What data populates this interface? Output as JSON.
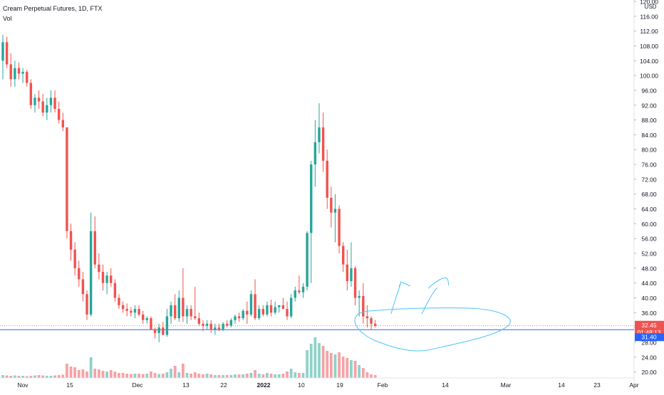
{
  "legend": {
    "title": "Cream Perpetual Futures, 1D, FTX",
    "volume_label": "Vol"
  },
  "chart_data": {
    "type": "candlestick",
    "currency_label": "USD",
    "price_axis": {
      "min": 18,
      "max": 120,
      "tick_labels": [
        "20.00",
        "24.00",
        "28.00",
        "32.00",
        "36.00",
        "40.00",
        "44.00",
        "48.00",
        "52.00",
        "56.00",
        "60.00",
        "64.00",
        "68.00",
        "72.00",
        "76.00",
        "80.00",
        "84.00",
        "88.00",
        "92.00",
        "96.00",
        "100.00",
        "104.00",
        "108.00",
        "112.00",
        "116.00",
        "120.00"
      ]
    },
    "time_axis": {
      "tick_labels": [
        "Nov",
        "15",
        "Dec",
        "13",
        "22",
        "2022",
        "10",
        "19",
        "Feb",
        "14",
        "Mar",
        "14",
        "23",
        "Apr"
      ],
      "bold_labels": [
        "2022"
      ]
    },
    "price_badges": {
      "last_price": "32.45",
      "countdown": "01:48:13",
      "line_price": "31.40"
    },
    "horizontal_line": 31.4,
    "colors": {
      "up": "#26a69a",
      "down": "#ef5350",
      "vol_up": "#8fd1c9",
      "vol_down": "#f5a3a6",
      "line": "#2962ff",
      "drawing": "#4fc3f7"
    },
    "candles": [
      [
        104.0,
        111.0,
        99.0,
        109.0
      ],
      [
        109.0,
        110.5,
        102.0,
        103.0
      ],
      [
        103.0,
        106.0,
        97.0,
        99.0
      ],
      [
        99.0,
        104.0,
        97.0,
        102.0
      ],
      [
        102.0,
        103.5,
        99.0,
        100.5
      ],
      [
        100.5,
        102.0,
        98.0,
        101.0
      ],
      [
        101.0,
        101.5,
        97.0,
        98.0
      ],
      [
        98.0,
        99.0,
        91.0,
        92.0
      ],
      [
        92.0,
        95.0,
        90.0,
        94.0
      ],
      [
        94.0,
        96.0,
        91.0,
        93.0
      ],
      [
        93.0,
        95.0,
        89.0,
        90.0
      ],
      [
        90.0,
        94.0,
        88.0,
        92.0
      ],
      [
        92.0,
        96.0,
        90.0,
        94.0
      ],
      [
        94.0,
        96.0,
        90.0,
        91.0
      ],
      [
        91.0,
        93.0,
        87.0,
        88.0
      ],
      [
        88.0,
        90.0,
        85.0,
        86.0
      ],
      [
        86.0,
        86.0,
        56.0,
        58.0
      ],
      [
        58.0,
        60.0,
        50.0,
        53.0
      ],
      [
        53.0,
        55.0,
        46.0,
        48.0
      ],
      [
        48.0,
        50.0,
        43.0,
        45.0
      ],
      [
        45.0,
        47.0,
        39.0,
        41.0
      ],
      [
        41.0,
        42.0,
        34.0,
        35.5
      ],
      [
        35.5,
        63.0,
        35.0,
        58.0
      ],
      [
        58.0,
        62.0,
        48.0,
        49.0
      ],
      [
        49.0,
        52.0,
        45.0,
        47.0
      ],
      [
        47.0,
        49.0,
        42.0,
        44.0
      ],
      [
        44.0,
        47.0,
        41.0,
        46.0
      ],
      [
        46.0,
        48.0,
        43.0,
        44.0
      ],
      [
        44.0,
        45.0,
        39.0,
        40.0
      ],
      [
        40.0,
        41.0,
        37.0,
        38.0
      ],
      [
        38.0,
        39.0,
        36.0,
        37.0
      ],
      [
        37.0,
        38.5,
        35.0,
        36.5
      ],
      [
        36.5,
        37.5,
        35.0,
        36.0
      ],
      [
        36.0,
        38.0,
        34.5,
        37.0
      ],
      [
        37.0,
        38.0,
        35.0,
        35.5
      ],
      [
        35.5,
        36.5,
        33.0,
        34.0
      ],
      [
        34.0,
        35.0,
        33.0,
        34.5
      ],
      [
        34.5,
        35.0,
        32.0,
        31.5
      ],
      [
        31.5,
        32.0,
        29.0,
        30.5
      ],
      [
        30.5,
        33.0,
        28.0,
        32.0
      ],
      [
        32.0,
        33.5,
        30.0,
        30.0
      ],
      [
        30.0,
        37.0,
        29.5,
        35.0
      ],
      [
        35.0,
        39.0,
        33.0,
        38.0
      ],
      [
        38.0,
        41.0,
        34.0,
        34.5
      ],
      [
        34.5,
        42.0,
        33.5,
        40.0
      ],
      [
        40.0,
        48.0,
        33.5,
        35.0
      ],
      [
        35.0,
        38.0,
        33.0,
        37.0
      ],
      [
        37.0,
        38.0,
        34.0,
        35.0
      ],
      [
        35.0,
        43.0,
        34.0,
        34.5
      ],
      [
        34.5,
        36.0,
        32.5,
        33.0
      ],
      [
        33.0,
        34.0,
        31.0,
        32.5
      ],
      [
        32.5,
        34.0,
        31.5,
        33.0
      ],
      [
        33.0,
        34.0,
        30.5,
        31.5
      ],
      [
        31.5,
        33.0,
        30.0,
        32.0
      ],
      [
        32.0,
        33.0,
        31.0,
        31.5
      ],
      [
        31.5,
        33.5,
        31.0,
        33.0
      ],
      [
        33.0,
        34.0,
        32.0,
        32.5
      ],
      [
        32.5,
        34.5,
        32.0,
        34.0
      ],
      [
        34.0,
        35.5,
        33.0,
        35.0
      ],
      [
        35.0,
        36.0,
        33.5,
        34.5
      ],
      [
        34.5,
        37.0,
        34.0,
        36.5
      ],
      [
        36.5,
        39.0,
        33.0,
        35.5
      ],
      [
        35.5,
        42.0,
        35.0,
        41.0
      ],
      [
        41.0,
        45.0,
        34.0,
        34.5
      ],
      [
        34.5,
        38.0,
        34.0,
        37.0
      ],
      [
        37.0,
        38.0,
        35.0,
        35.5
      ],
      [
        35.5,
        39.0,
        35.0,
        38.0
      ],
      [
        38.0,
        39.5,
        35.0,
        36.0
      ],
      [
        36.0,
        39.0,
        35.5,
        37.5
      ],
      [
        37.5,
        38.0,
        36.0,
        38.0
      ],
      [
        38.0,
        40.0,
        37.0,
        37.0
      ],
      [
        37.0,
        39.0,
        34.0,
        35.0
      ],
      [
        35.0,
        41.0,
        34.5,
        40.0
      ],
      [
        40.0,
        43.0,
        39.0,
        42.0
      ],
      [
        42.0,
        46.0,
        41.0,
        41.5
      ],
      [
        41.5,
        44.0,
        40.0,
        43.0
      ],
      [
        43.0,
        58.0,
        42.0,
        57.5
      ],
      [
        57.5,
        77.0,
        44.0,
        76.0
      ],
      [
        76.0,
        88.0,
        70.0,
        82.0
      ],
      [
        82.0,
        92.5,
        79.0,
        86.0
      ],
      [
        86.0,
        90.0,
        74.0,
        77.0
      ],
      [
        77.0,
        80.0,
        64.0,
        67.0
      ],
      [
        67.0,
        70.0,
        59.0,
        63.0
      ],
      [
        63.0,
        68.0,
        55.0,
        64.0
      ],
      [
        64.0,
        65.0,
        52.0,
        54.0
      ],
      [
        54.0,
        55.0,
        47.0,
        49.0
      ],
      [
        49.0,
        53.0,
        42.0,
        44.5
      ],
      [
        44.5,
        55.0,
        43.0,
        48.0
      ],
      [
        48.0,
        48.5,
        38.0,
        40.0
      ],
      [
        40.0,
        42.0,
        35.0,
        40.5
      ],
      [
        40.5,
        44.0,
        33.0,
        35.0
      ],
      [
        35.0,
        38.0,
        32.0,
        34.5
      ],
      [
        34.5,
        35.0,
        31.5,
        33.0
      ],
      [
        33.0,
        34.0,
        32.0,
        32.45
      ]
    ],
    "volumes": [
      4,
      3.5,
      3,
      3.5,
      3,
      3,
      2.5,
      3,
      3.5,
      4,
      3.5,
      3,
      3,
      3.5,
      4,
      4.5,
      20,
      16,
      15,
      11,
      12,
      9,
      29,
      13,
      12,
      10,
      9,
      11,
      9,
      7,
      7,
      6,
      5.5,
      6,
      6,
      5.5,
      6,
      9,
      7,
      5.5,
      6,
      8,
      13,
      17,
      8,
      20,
      7,
      6,
      8,
      6,
      5,
      6,
      5,
      4,
      4,
      4,
      4,
      4,
      5,
      5,
      5,
      6,
      7,
      11,
      6,
      5,
      7,
      6,
      5,
      5,
      6,
      9,
      13,
      8,
      7,
      7,
      39,
      48,
      57,
      49,
      45,
      38,
      35,
      33,
      36,
      30,
      28,
      25,
      24,
      18,
      14,
      8,
      5,
      4
    ]
  }
}
